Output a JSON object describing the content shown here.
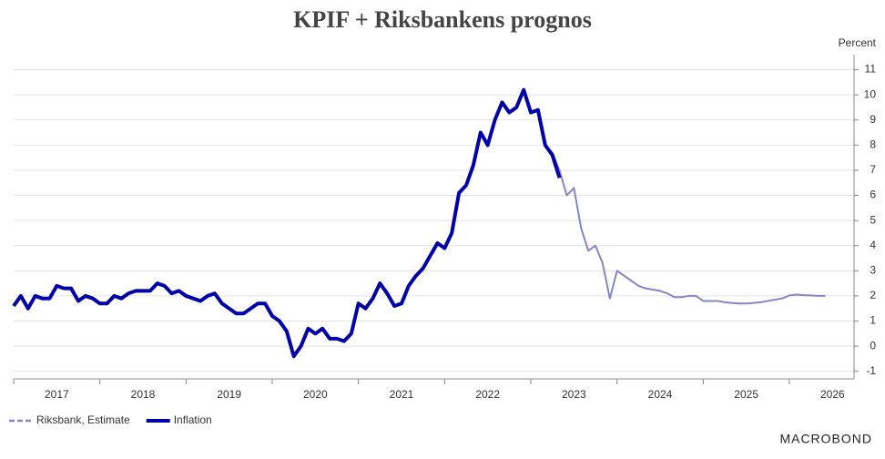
{
  "chart_data": {
    "type": "line",
    "title": "KPIF + Riksbankens prognos",
    "y_axis_label": "Percent",
    "xlim": [
      2017,
      2026.75
    ],
    "xticks": [
      2017,
      2018,
      2019,
      2020,
      2021,
      2022,
      2023,
      2024,
      2025,
      2026
    ],
    "ylim": [
      -1.3,
      11.6
    ],
    "yticks": [
      -1,
      0,
      1,
      2,
      3,
      4,
      5,
      6,
      7,
      8,
      9,
      10,
      11
    ],
    "grid": true,
    "legend": "bottom-left",
    "source": "MACROBOND",
    "series": [
      {
        "name": "Riksbank, Estimate",
        "color": "#8585c8",
        "dashed_legend": true,
        "x": [
          2023.167,
          2023.25,
          2023.333,
          2023.417,
          2023.5,
          2023.583,
          2023.667,
          2023.75,
          2023.833,
          2023.917,
          2024.0,
          2024.083,
          2024.167,
          2024.25,
          2024.333,
          2024.417,
          2024.5,
          2024.583,
          2024.667,
          2024.75,
          2024.833,
          2024.917,
          2025.0,
          2025.083,
          2025.167,
          2025.25,
          2025.333,
          2025.417,
          2025.5,
          2025.583,
          2025.667,
          2025.75,
          2025.833,
          2025.917,
          2026.0,
          2026.083,
          2026.167,
          2026.25,
          2026.333,
          2026.417
        ],
        "values": [
          8.0,
          7.7,
          7.0,
          6.0,
          6.3,
          4.7,
          3.8,
          4.0,
          3.3,
          1.9,
          3.0,
          2.8,
          2.6,
          2.4,
          2.3,
          2.25,
          2.2,
          2.1,
          1.95,
          1.95,
          2.0,
          2.0,
          1.8,
          1.8,
          1.8,
          1.75,
          1.72,
          1.7,
          1.7,
          1.72,
          1.75,
          1.8,
          1.85,
          1.9,
          2.02,
          2.05,
          2.03,
          2.02,
          2.0,
          2.0
        ]
      },
      {
        "name": "Inflation",
        "color": "#0000a8",
        "x": [
          2017.0,
          2017.083,
          2017.167,
          2017.25,
          2017.333,
          2017.417,
          2017.5,
          2017.583,
          2017.667,
          2017.75,
          2017.833,
          2017.917,
          2018.0,
          2018.083,
          2018.167,
          2018.25,
          2018.333,
          2018.417,
          2018.5,
          2018.583,
          2018.667,
          2018.75,
          2018.833,
          2018.917,
          2019.0,
          2019.083,
          2019.167,
          2019.25,
          2019.333,
          2019.417,
          2019.5,
          2019.583,
          2019.667,
          2019.75,
          2019.833,
          2019.917,
          2020.0,
          2020.083,
          2020.167,
          2020.25,
          2020.333,
          2020.417,
          2020.5,
          2020.583,
          2020.667,
          2020.75,
          2020.833,
          2020.917,
          2021.0,
          2021.083,
          2021.167,
          2021.25,
          2021.333,
          2021.417,
          2021.5,
          2021.583,
          2021.667,
          2021.75,
          2021.833,
          2021.917,
          2022.0,
          2022.083,
          2022.167,
          2022.25,
          2022.333,
          2022.417,
          2022.5,
          2022.583,
          2022.667,
          2022.75,
          2022.833,
          2022.917,
          2023.0,
          2023.083,
          2023.167,
          2023.25,
          2023.333
        ],
        "values": [
          1.6,
          2.0,
          1.5,
          2.0,
          1.9,
          1.9,
          2.4,
          2.3,
          2.3,
          1.8,
          2.0,
          1.9,
          1.7,
          1.7,
          2.0,
          1.9,
          2.1,
          2.2,
          2.2,
          2.2,
          2.5,
          2.4,
          2.1,
          2.2,
          2.0,
          1.9,
          1.8,
          2.0,
          2.1,
          1.7,
          1.5,
          1.3,
          1.3,
          1.5,
          1.7,
          1.7,
          1.2,
          1.0,
          0.6,
          -0.4,
          0.0,
          0.7,
          0.5,
          0.7,
          0.3,
          0.3,
          0.2,
          0.5,
          1.7,
          1.5,
          1.9,
          2.5,
          2.1,
          1.6,
          1.7,
          2.4,
          2.8,
          3.1,
          3.6,
          4.1,
          3.9,
          4.5,
          6.1,
          6.4,
          7.2,
          8.5,
          8.0,
          9.0,
          9.7,
          9.3,
          9.5,
          10.2,
          9.3,
          9.4,
          8.0,
          7.6,
          6.7
        ]
      }
    ]
  }
}
